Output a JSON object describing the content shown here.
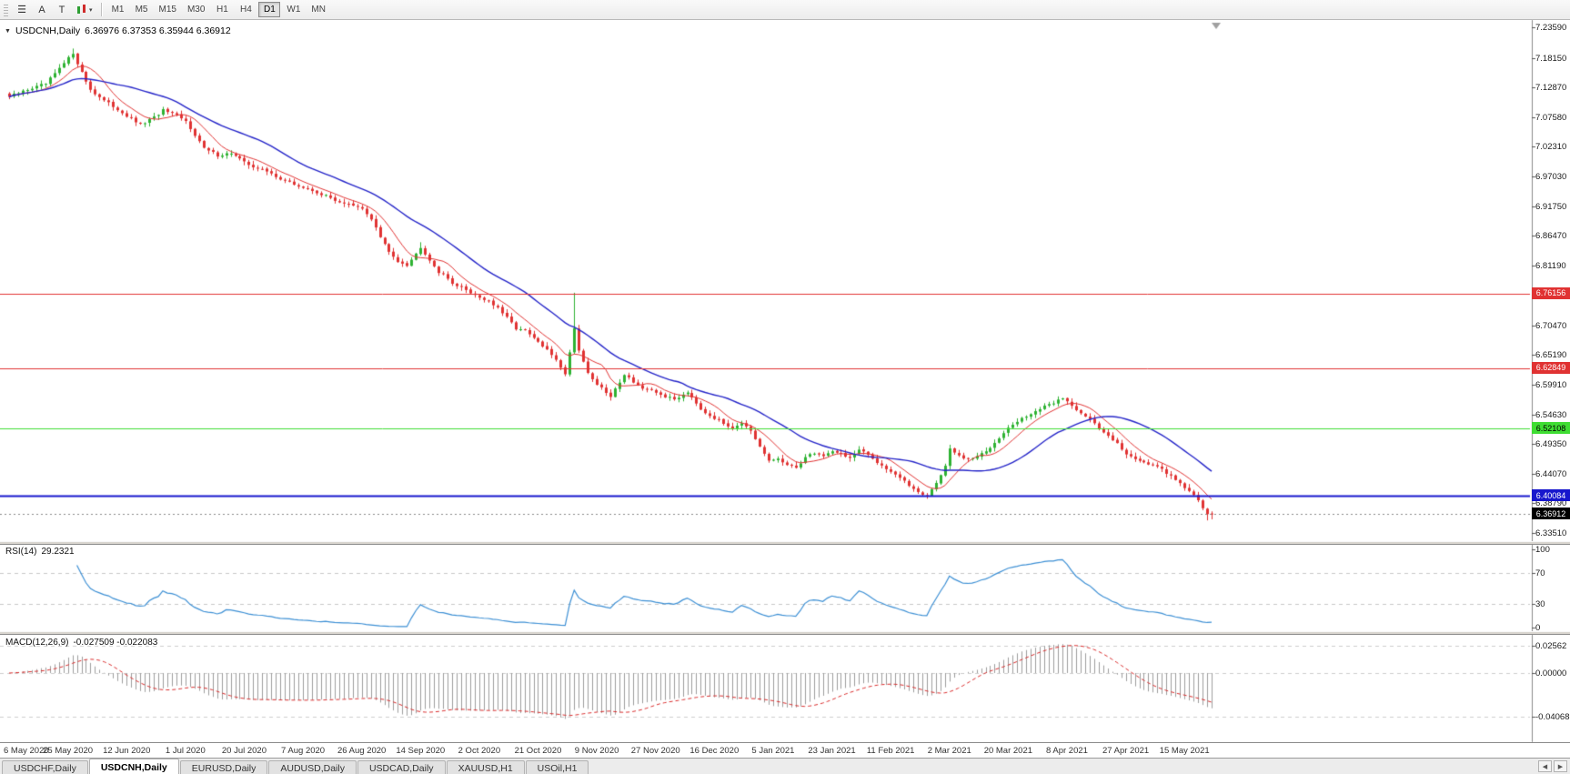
{
  "icons": {
    "menu": "☰",
    "collapse": "▼",
    "caret": "▾",
    "letter_cursor": "A",
    "letter_text": "T",
    "tab_scroll_left": "◀",
    "tab_scroll_right": "▶"
  },
  "toolbar": {
    "timeframes": [
      "M1",
      "M5",
      "M15",
      "M30",
      "H1",
      "H4",
      "D1",
      "W1",
      "MN"
    ],
    "active_timeframe": "D1"
  },
  "chart": {
    "title": "USDCNH,Daily",
    "ohlc": "6.36976 6.37353 6.35944 6.36912",
    "price_axis_labels": [
      "7.23590",
      "7.18150",
      "7.12870",
      "7.07580",
      "7.02310",
      "6.97030",
      "6.91750",
      "6.86470",
      "6.81190",
      "6.75910",
      "6.70470",
      "6.65190",
      "6.59910",
      "6.54630",
      "6.49350",
      "6.44070",
      "6.38790",
      "6.33510"
    ],
    "hlines": [
      {
        "label": "6.76156",
        "value": 6.76156,
        "color": "#e03232",
        "text_color": "#ffffff",
        "width": 1
      },
      {
        "label": "6.62849",
        "value": 6.62849,
        "color": "#e03232",
        "text_color": "#ffffff",
        "width": 1
      },
      {
        "label": "6.52108",
        "value": 6.52108,
        "color": "#3fdd33",
        "text_color": "#000000",
        "width": 1
      },
      {
        "label": "6.40084",
        "value": 6.40084,
        "color": "#1717cd",
        "text_color": "#ffffff",
        "width": 2
      }
    ],
    "current_price": {
      "label": "6.36912",
      "value": 6.36912,
      "badge_color": "#000000",
      "text_color": "#ffffff"
    },
    "dates": [
      "6 May 2020",
      "25 May 2020",
      "12 Jun 2020",
      "1 Jul 2020",
      "20 Jul 2020",
      "7 Aug 2020",
      "26 Aug 2020",
      "14 Sep 2020",
      "2 Oct 2020",
      "21 Oct 2020",
      "9 Nov 2020",
      "27 Nov 2020",
      "16 Dec 2020",
      "5 Jan 2021",
      "23 Jan 2021",
      "11 Feb 2021",
      "2 Mar 2021",
      "20 Mar 2021",
      "8 Apr 2021",
      "27 Apr 2021",
      "15 May 2021"
    ],
    "up_color": "#2eb232",
    "down_color": "#e03232",
    "ma_fast_color": "#e03232",
    "ma_slow_color": "#2424c8"
  },
  "rsi": {
    "label": "RSI(14)",
    "value": "29.2321",
    "axis_labels": [
      "100",
      "70",
      "30",
      "0"
    ],
    "line_color": "#3c8fd4"
  },
  "macd": {
    "label": "MACD(12,26,9)",
    "value": "-0.027509 -0.022083",
    "axis_labels": [
      "0.02562",
      "0.00000",
      "-0.04068"
    ],
    "histogram_color": "#9d9d9d",
    "signal_color": "#d92b2b"
  },
  "tabs": [
    {
      "label": "USDCHF,Daily",
      "active": false
    },
    {
      "label": "USDCNH,Daily",
      "active": true
    },
    {
      "label": "EURUSD,Daily",
      "active": false
    },
    {
      "label": "AUDUSD,Daily",
      "active": false
    },
    {
      "label": "USDCAD,Daily",
      "active": false
    },
    {
      "label": "XAUUSD,H1",
      "active": false
    },
    {
      "label": "USOil,H1",
      "active": false
    }
  ],
  "chart_data": {
    "type": "candlestick",
    "symbol": "USDCNH",
    "timeframe": "Daily",
    "x_start_date": "6 May 2020",
    "x_end_date": "15 May 2021",
    "y_range": [
      6.3351,
      7.2359
    ],
    "bars": 267,
    "close_keypoints": [
      [
        0,
        7.112
      ],
      [
        4,
        7.125
      ],
      [
        8,
        7.135
      ],
      [
        11,
        7.162
      ],
      [
        14,
        7.19
      ],
      [
        16,
        7.155
      ],
      [
        18,
        7.125
      ],
      [
        21,
        7.105
      ],
      [
        24,
        7.09
      ],
      [
        26,
        7.078
      ],
      [
        29,
        7.062
      ],
      [
        32,
        7.075
      ],
      [
        34,
        7.088
      ],
      [
        37,
        7.078
      ],
      [
        39,
        7.068
      ],
      [
        41,
        7.045
      ],
      [
        43,
        7.02
      ],
      [
        46,
        7.008
      ],
      [
        49,
        7.012
      ],
      [
        52,
        6.995
      ],
      [
        55,
        6.985
      ],
      [
        58,
        6.975
      ],
      [
        61,
        6.962
      ],
      [
        65,
        6.95
      ],
      [
        68,
        6.942
      ],
      [
        72,
        6.928
      ],
      [
        75,
        6.92
      ],
      [
        78,
        6.912
      ],
      [
        80,
        6.895
      ],
      [
        82,
        6.862
      ],
      [
        84,
        6.835
      ],
      [
        86,
        6.82
      ],
      [
        88,
        6.813
      ],
      [
        90,
        6.832
      ],
      [
        91,
        6.845
      ],
      [
        93,
        6.822
      ],
      [
        95,
        6.8
      ],
      [
        97,
        6.788
      ],
      [
        99,
        6.775
      ],
      [
        101,
        6.768
      ],
      [
        104,
        6.755
      ],
      [
        106,
        6.748
      ],
      [
        108,
        6.735
      ],
      [
        110,
        6.718
      ],
      [
        112,
        6.7
      ],
      [
        114,
        6.695
      ],
      [
        117,
        6.675
      ],
      [
        119,
        6.66
      ],
      [
        121,
        6.645
      ],
      [
        123,
        6.617
      ],
      [
        125,
        6.7
      ],
      [
        126,
        6.662
      ],
      [
        128,
        6.62
      ],
      [
        130,
        6.6
      ],
      [
        132,
        6.585
      ],
      [
        133,
        6.577
      ],
      [
        135,
        6.605
      ],
      [
        136,
        6.618
      ],
      [
        138,
        6.605
      ],
      [
        140,
        6.592
      ],
      [
        143,
        6.585
      ],
      [
        145,
        6.578
      ],
      [
        147,
        6.573
      ],
      [
        149,
        6.582
      ],
      [
        150,
        6.587
      ],
      [
        152,
        6.568
      ],
      [
        153,
        6.556
      ],
      [
        155,
        6.545
      ],
      [
        156,
        6.54
      ],
      [
        158,
        6.53
      ],
      [
        160,
        6.523
      ],
      [
        162,
        6.532
      ],
      [
        164,
        6.515
      ],
      [
        165,
        6.5
      ],
      [
        166,
        6.488
      ],
      [
        168,
        6.463
      ],
      [
        170,
        6.468
      ],
      [
        172,
        6.455
      ],
      [
        174,
        6.452
      ],
      [
        176,
        6.47
      ],
      [
        178,
        6.478
      ],
      [
        180,
        6.472
      ],
      [
        182,
        6.482
      ],
      [
        184,
        6.476
      ],
      [
        186,
        6.469
      ],
      [
        188,
        6.482
      ],
      [
        190,
        6.474
      ],
      [
        192,
        6.462
      ],
      [
        194,
        6.45
      ],
      [
        196,
        6.44
      ],
      [
        198,
        6.426
      ],
      [
        200,
        6.414
      ],
      [
        202,
        6.405
      ],
      [
        203,
        6.402
      ],
      [
        205,
        6.424
      ],
      [
        207,
        6.455
      ],
      [
        208,
        6.484
      ],
      [
        210,
        6.472
      ],
      [
        212,
        6.465
      ],
      [
        214,
        6.472
      ],
      [
        216,
        6.48
      ],
      [
        218,
        6.497
      ],
      [
        220,
        6.515
      ],
      [
        222,
        6.528
      ],
      [
        224,
        6.538
      ],
      [
        226,
        6.548
      ],
      [
        228,
        6.556
      ],
      [
        230,
        6.563
      ],
      [
        232,
        6.572
      ],
      [
        233,
        6.576
      ],
      [
        235,
        6.562
      ],
      [
        237,
        6.55
      ],
      [
        239,
        6.538
      ],
      [
        241,
        6.52
      ],
      [
        243,
        6.508
      ],
      [
        245,
        6.497
      ],
      [
        247,
        6.474
      ],
      [
        249,
        6.468
      ],
      [
        251,
        6.462
      ],
      [
        253,
        6.456
      ],
      [
        255,
        6.447
      ],
      [
        257,
        6.437
      ],
      [
        259,
        6.425
      ],
      [
        260,
        6.416
      ],
      [
        261,
        6.408
      ],
      [
        262,
        6.402
      ],
      [
        263,
        6.394
      ],
      [
        264,
        6.38
      ],
      [
        265,
        6.371
      ],
      [
        266,
        6.36912
      ]
    ],
    "spikes": [
      {
        "bar": 14,
        "high": 7.198
      },
      {
        "bar": 91,
        "high": 6.853
      },
      {
        "bar": 125,
        "high": 6.763
      },
      {
        "bar": 203,
        "low": 6.398
      },
      {
        "bar": 265,
        "low": 6.3575
      }
    ],
    "last_candle": {
      "open": 6.36976,
      "high": 6.37353,
      "low": 6.35944,
      "close": 6.36912
    }
  }
}
